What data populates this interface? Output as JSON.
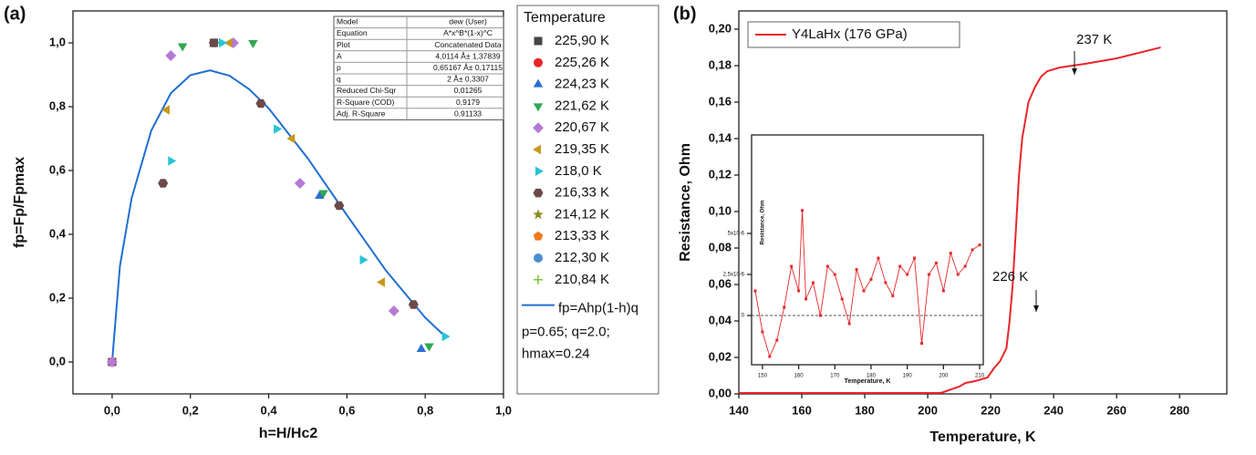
{
  "chart_data": [
    {
      "type": "scatter",
      "panel_label": "(a)",
      "x_label": "h=H/Hc2",
      "y_label": "fp=Fp/Fpmax",
      "xlim": [
        -0.1,
        1.0
      ],
      "ylim": [
        -0.1,
        1.1
      ],
      "xticks": [
        {
          "value": 0,
          "label": "0,0"
        },
        {
          "value": 0.2,
          "label": "0,2"
        },
        {
          "value": 0.4,
          "label": "0,4"
        },
        {
          "value": 0.6,
          "label": "0,6"
        },
        {
          "value": 0.8,
          "label": "0,8"
        },
        {
          "value": 1.0,
          "label": "1,0"
        }
      ],
      "yticks": [
        {
          "value": 0,
          "label": "0,0"
        },
        {
          "value": 0.2,
          "label": "0,2"
        },
        {
          "value": 0.4,
          "label": "0,4"
        },
        {
          "value": 0.6,
          "label": "0,6"
        },
        {
          "value": 0.8,
          "label": "0,8"
        },
        {
          "value": 1.0,
          "label": "1,0"
        }
      ],
      "legend_title": "Temperature",
      "series": [
        {
          "name": "225,90 K",
          "color": "#444444",
          "marker": "square",
          "x": [
            0,
            0.26
          ],
          "y": [
            0,
            1.0
          ]
        },
        {
          "name": "225,26 K",
          "color": "#e8262a",
          "marker": "circle",
          "x": [
            0
          ],
          "y": [
            0
          ]
        },
        {
          "name": "224,23 K",
          "color": "#2a6ed6",
          "marker": "tri-up",
          "x": [
            0,
            0.53,
            0.79
          ],
          "y": [
            0,
            0.52,
            0.04
          ]
        },
        {
          "name": "221,62 K",
          "color": "#2fa84f",
          "marker": "tri-down",
          "x": [
            0.18,
            0.36,
            0.54,
            0.81
          ],
          "y": [
            0.99,
            1.0,
            0.53,
            0.05
          ]
        },
        {
          "name": "220,67 K",
          "color": "#b57ad6",
          "marker": "diamond",
          "x": [
            0,
            0.15,
            0.31,
            0.48,
            0.72
          ],
          "y": [
            0,
            0.96,
            1.0,
            0.56,
            0.16
          ]
        },
        {
          "name": "219,35 K",
          "color": "#c8971e",
          "marker": "tri-left",
          "x": [
            0.14,
            0.3,
            0.46,
            0.69
          ],
          "y": [
            0.79,
            1.0,
            0.7,
            0.25
          ]
        },
        {
          "name": "218,0 K",
          "color": "#27c4d6",
          "marker": "tri-right",
          "x": [
            0.15,
            0.28,
            0.42,
            0.64,
            0.85
          ],
          "y": [
            0.63,
            1.0,
            0.73,
            0.32,
            0.08
          ]
        },
        {
          "name": "216,33 K",
          "color": "#6b4a48",
          "marker": "hexagon",
          "x": [
            0.13,
            0.26,
            0.38,
            0.58,
            0.77
          ],
          "y": [
            0.56,
            1.0,
            0.81,
            0.49,
            0.18
          ]
        },
        {
          "name": "214,12 K",
          "color": "#8a8a1e",
          "marker": "star",
          "x": [],
          "y": []
        },
        {
          "name": "213,33 K",
          "color": "#f07a1e",
          "marker": "pentagon",
          "x": [],
          "y": []
        },
        {
          "name": "212,30 K",
          "color": "#4a8fd0",
          "marker": "sphere",
          "x": [],
          "y": []
        },
        {
          "name": "210,84 K",
          "color": "#7ac23a",
          "marker": "plus",
          "x": [],
          "y": []
        }
      ],
      "fit": {
        "name": "fp=Ahp(1-h)q",
        "color": "#1f6fd1",
        "x": [
          0,
          0.02,
          0.05,
          0.1,
          0.15,
          0.2,
          0.25,
          0.3,
          0.35,
          0.4,
          0.5,
          0.6,
          0.7,
          0.8,
          0.85
        ],
        "y": [
          0,
          0.301,
          0.514,
          0.725,
          0.842,
          0.899,
          0.914,
          0.897,
          0.855,
          0.795,
          0.638,
          0.46,
          0.286,
          0.139,
          0.081
        ]
      },
      "notes": [
        "p=0.65; q=2.0;",
        "hmax=0.24"
      ],
      "fit_table": [
        [
          "Model",
          "dew (User)"
        ],
        [
          "Equation",
          "A*x^B*(1-x)^C"
        ],
        [
          "Plot",
          "Concatenated Data"
        ],
        [
          "A",
          "4,0114 Å± 1,37839"
        ],
        [
          "p",
          "0,65167 Å± 0,17115"
        ],
        [
          "q",
          "2 Å± 0,3307"
        ],
        [
          "Reduced Chi-Sqr",
          "0,01265"
        ],
        [
          "R-Square (COD)",
          "0,9179"
        ],
        [
          "Adj. R-Square",
          "0,91133"
        ]
      ]
    },
    {
      "type": "line",
      "panel_label": "(b)",
      "x_label": "Temperature, K",
      "y_label": "Resistance, Ohm",
      "xlim": [
        140,
        295
      ],
      "ylim": [
        0,
        0.21
      ],
      "xticks": [
        140,
        160,
        180,
        200,
        220,
        240,
        260,
        280
      ],
      "yticks": [
        {
          "value": 0,
          "label": "0,00"
        },
        {
          "value": 0.02,
          "label": "0,02"
        },
        {
          "value": 0.04,
          "label": "0,04"
        },
        {
          "value": 0.06,
          "label": "0,06"
        },
        {
          "value": 0.08,
          "label": "0,08"
        },
        {
          "value": 0.1,
          "label": "0,10"
        },
        {
          "value": 0.12,
          "label": "0,12"
        },
        {
          "value": 0.14,
          "label": "0,14"
        },
        {
          "value": 0.16,
          "label": "0,16"
        },
        {
          "value": 0.18,
          "label": "0,18"
        },
        {
          "value": 0.2,
          "label": "0,20"
        }
      ],
      "series": [
        {
          "name": "Y4LaHx (176 GPa)",
          "color": "#e8262a",
          "x": [
            140,
            204,
            205,
            210,
            212,
            215,
            219,
            221,
            223,
            225,
            226,
            227,
            228,
            229,
            230,
            232,
            234,
            236,
            238,
            242,
            250,
            260,
            274
          ],
          "y": [
            0.0005,
            0.0005,
            0.001,
            0.004,
            0.006,
            0.007,
            0.009,
            0.014,
            0.018,
            0.025,
            0.04,
            0.06,
            0.09,
            0.12,
            0.14,
            0.16,
            0.168,
            0.174,
            0.177,
            0.179,
            0.181,
            0.184,
            0.19
          ]
        }
      ],
      "annotations": [
        "237 K",
        "226 K"
      ],
      "inset": {
        "type": "line",
        "x_label": "Temperature, K",
        "y_label": "Resistance, Ohm",
        "color": "#e8262a",
        "xlim": [
          147,
          211
        ],
        "ylim": [
          -3e-06,
          1.1e-05
        ],
        "xticks": [
          150,
          160,
          170,
          180,
          190,
          200,
          210
        ],
        "yticks": [
          {
            "value": 0,
            "label": "0"
          },
          {
            "value": 2.5e-06,
            "label": "2,5x10-6"
          },
          {
            "value": 5e-06,
            "label": "5x10-6"
          }
        ],
        "x": [
          148,
          150,
          152,
          154,
          156,
          158,
          160,
          161,
          162,
          164,
          166,
          168,
          170,
          172,
          174,
          176,
          178,
          180,
          182,
          184,
          186,
          188,
          190,
          192,
          194,
          196,
          198,
          200,
          202,
          204,
          206,
          208,
          210
        ],
        "y": [
          1.5e-06,
          -1e-06,
          -2.5e-06,
          -1.5e-06,
          5e-07,
          3e-06,
          1.5e-06,
          6.4e-06,
          1e-06,
          2e-06,
          0.0,
          3e-06,
          2.5e-06,
          1e-06,
          -5e-07,
          2.8e-06,
          1.5e-06,
          2.2e-06,
          3.5e-06,
          2e-06,
          1.2e-06,
          3e-06,
          2.5e-06,
          3.5e-06,
          -1.7e-06,
          2.5e-06,
          3.2e-06,
          1.5e-06,
          3.8e-06,
          2.5e-06,
          3e-06,
          4e-06,
          4.3e-06
        ]
      }
    }
  ]
}
